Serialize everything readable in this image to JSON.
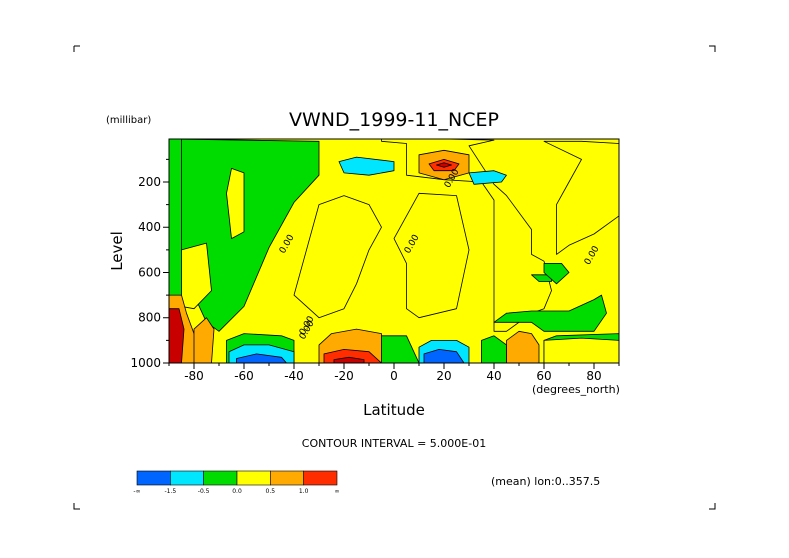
{
  "colors": {
    "lvl_m2": "#0064ff",
    "lvl_m15": "#00e6ff",
    "lvl_m05": "#00dc00",
    "lvl_0": "#ffff00",
    "lvl_05": "#ffaa00",
    "lvl_1": "#ff2d00",
    "lvl_15": "#c80000",
    "line": "#000000"
  },
  "chart_data": {
    "type": "heatmap",
    "title": "VWND_1999-11_NCEP",
    "xlabel": "Latitude",
    "ylabel": "Level",
    "y_unit": "(millibar)",
    "x_unit": "(degrees_north)",
    "xlim": [
      -90,
      90
    ],
    "ylim": [
      1000,
      10
    ],
    "x_ticks": [
      -80,
      -60,
      -40,
      -20,
      0,
      20,
      40,
      60,
      80
    ],
    "y_ticks": [
      200,
      400,
      600,
      800,
      1000
    ],
    "contour_interval_text": "CONTOUR INTERVAL = 5.000E-01",
    "region_text": "(mean) lon:0..357.5",
    "contour_labels": [
      "0.00",
      "0.00",
      "0.00",
      "0.00",
      "0.00",
      "0.00"
    ],
    "colorbar": {
      "labels": [
        "-∞",
        "-1.5",
        "-0.5",
        "0.0",
        "0.5",
        "1.0",
        "∞"
      ],
      "bins": [
        "lvl_m2",
        "lvl_m15",
        "lvl_m05",
        "lvl_0",
        "lvl_05",
        "lvl_1"
      ]
    },
    "regions": [
      {
        "level": "lvl_m05",
        "polygon": [
          [
            -90,
            10
          ],
          [
            -30,
            20
          ],
          [
            -30,
            170
          ],
          [
            -40,
            290
          ],
          [
            -50,
            490
          ],
          [
            -60,
            750
          ],
          [
            -70,
            860
          ],
          [
            -75,
            820
          ],
          [
            -80,
            700
          ],
          [
            -90,
            600
          ]
        ]
      },
      {
        "level": "lvl_0",
        "polygon": [
          [
            -90,
            740
          ],
          [
            -85,
            500
          ],
          [
            -75,
            470
          ],
          [
            -73,
            680
          ],
          [
            -80,
            760
          ]
        ]
      },
      {
        "level": "lvl_0",
        "polygon": [
          [
            -65,
            140
          ],
          [
            -60,
            160
          ],
          [
            -60,
            420
          ],
          [
            -65,
            450
          ],
          [
            -67,
            250
          ]
        ]
      },
      {
        "level": "lvl_0",
        "polygon": [
          [
            -30,
            10
          ],
          [
            -5,
            10
          ],
          [
            -5,
            20
          ],
          [
            5,
            30
          ],
          [
            5,
            170
          ],
          [
            20,
            190
          ],
          [
            35,
            200
          ],
          [
            40,
            280
          ],
          [
            40,
            760
          ],
          [
            40,
            860
          ],
          [
            45,
            860
          ],
          [
            55,
            780
          ],
          [
            60,
            760
          ],
          [
            63,
            680
          ],
          [
            60,
            550
          ],
          [
            55,
            520
          ],
          [
            55,
            410
          ],
          [
            45,
            260
          ],
          [
            40,
            210
          ],
          [
            30,
            40
          ],
          [
            40,
            15
          ],
          [
            20,
            10
          ]
        ]
      },
      {
        "level": "lvl_0",
        "polygon": [
          [
            10,
            250
          ],
          [
            25,
            260
          ],
          [
            30,
            500
          ],
          [
            25,
            760
          ],
          [
            10,
            800
          ],
          [
            5,
            760
          ],
          [
            5,
            560
          ],
          [
            0,
            450
          ],
          [
            5,
            350
          ]
        ]
      },
      {
        "level": "lvl_0",
        "polygon": [
          [
            -30,
            800
          ],
          [
            -20,
            760
          ],
          [
            -15,
            650
          ],
          [
            -10,
            500
          ],
          [
            -5,
            400
          ],
          [
            -10,
            300
          ],
          [
            -20,
            260
          ],
          [
            -30,
            300
          ],
          [
            -35,
            500
          ],
          [
            -40,
            700
          ]
        ]
      },
      {
        "level": "lvl_0",
        "polygon": [
          [
            60,
            20
          ],
          [
            75,
            20
          ],
          [
            90,
            30
          ],
          [
            90,
            350
          ],
          [
            80,
            430
          ],
          [
            70,
            480
          ],
          [
            65,
            520
          ],
          [
            65,
            300
          ],
          [
            70,
            200
          ],
          [
            75,
            100
          ]
        ]
      },
      {
        "level": "lvl_m05",
        "polygon": [
          [
            40,
            820
          ],
          [
            45,
            780
          ],
          [
            55,
            770
          ],
          [
            70,
            770
          ],
          [
            80,
            720
          ],
          [
            83,
            700
          ],
          [
            85,
            780
          ],
          [
            80,
            860
          ],
          [
            65,
            860
          ],
          [
            60,
            860
          ],
          [
            55,
            820
          ]
        ]
      },
      {
        "level": "lvl_m05",
        "polygon": [
          [
            55,
            610
          ],
          [
            63,
            610
          ],
          [
            63,
            640
          ],
          [
            58,
            640
          ]
        ]
      },
      {
        "level": "lvl_m05",
        "polygon": [
          [
            60,
            560
          ],
          [
            67,
            560
          ],
          [
            70,
            600
          ],
          [
            65,
            650
          ],
          [
            60,
            600
          ]
        ]
      },
      {
        "level": "lvl_m05",
        "polygon": [
          [
            -90,
            10
          ],
          [
            -85,
            10
          ],
          [
            -85,
            900
          ],
          [
            -90,
            1000
          ]
        ]
      },
      {
        "level": "lvl_m05",
        "polygon": [
          [
            -67,
            900
          ],
          [
            -60,
            870
          ],
          [
            -45,
            880
          ],
          [
            -40,
            900
          ],
          [
            -40,
            1000
          ],
          [
            -67,
            1000
          ]
        ]
      },
      {
        "level": "lvl_m05",
        "polygon": [
          [
            -8,
            880
          ],
          [
            5,
            880
          ],
          [
            10,
            1000
          ],
          [
            -8,
            1000
          ]
        ]
      },
      {
        "level": "lvl_m05",
        "polygon": [
          [
            35,
            900
          ],
          [
            40,
            880
          ],
          [
            45,
            920
          ],
          [
            45,
            1000
          ],
          [
            35,
            1000
          ]
        ]
      },
      {
        "level": "lvl_m05",
        "polygon": [
          [
            60,
            900
          ],
          [
            65,
            880
          ],
          [
            90,
            870
          ],
          [
            90,
            1000
          ],
          [
            60,
            1000
          ]
        ]
      },
      {
        "level": "lvl_0",
        "polygon": [
          [
            60,
            900
          ],
          [
            75,
            890
          ],
          [
            90,
            900
          ],
          [
            90,
            1000
          ],
          [
            60,
            1000
          ]
        ]
      },
      {
        "level": "lvl_m15",
        "polygon": [
          [
            -22,
            110
          ],
          [
            -15,
            90
          ],
          [
            0,
            110
          ],
          [
            0,
            150
          ],
          [
            -10,
            170
          ],
          [
            -20,
            160
          ]
        ]
      },
      {
        "level": "lvl_m15",
        "polygon": [
          [
            30,
            160
          ],
          [
            40,
            150
          ],
          [
            45,
            170
          ],
          [
            43,
            200
          ],
          [
            32,
            210
          ]
        ]
      },
      {
        "level": "lvl_05",
        "polygon": [
          [
            10,
            80
          ],
          [
            20,
            60
          ],
          [
            30,
            80
          ],
          [
            30,
            160
          ],
          [
            20,
            190
          ],
          [
            10,
            160
          ]
        ]
      },
      {
        "level": "lvl_1",
        "polygon": [
          [
            14,
            120
          ],
          [
            20,
            100
          ],
          [
            26,
            120
          ],
          [
            24,
            150
          ],
          [
            16,
            150
          ]
        ]
      },
      {
        "level": "lvl_15",
        "polygon": [
          [
            17,
            125
          ],
          [
            20,
            115
          ],
          [
            23,
            125
          ],
          [
            20,
            135
          ]
        ]
      },
      {
        "level": "lvl_05",
        "polygon": [
          [
            -90,
            700
          ],
          [
            -85,
            700
          ],
          [
            -83,
            780
          ],
          [
            -80,
            870
          ],
          [
            -78,
            940
          ],
          [
            -80,
            1000
          ],
          [
            -90,
            1000
          ]
        ]
      },
      {
        "level": "lvl_05",
        "polygon": [
          [
            -80,
            850
          ],
          [
            -75,
            800
          ],
          [
            -72,
            850
          ],
          [
            -73,
            1000
          ],
          [
            -80,
            1000
          ]
        ]
      },
      {
        "level": "lvl_05",
        "polygon": [
          [
            -30,
            920
          ],
          [
            -25,
            870
          ],
          [
            -15,
            850
          ],
          [
            -5,
            870
          ],
          [
            -5,
            1000
          ],
          [
            -30,
            1000
          ]
        ]
      },
      {
        "level": "lvl_05",
        "polygon": [
          [
            45,
            900
          ],
          [
            50,
            860
          ],
          [
            55,
            870
          ],
          [
            58,
            920
          ],
          [
            58,
            1000
          ],
          [
            45,
            1000
          ]
        ]
      },
      {
        "level": "lvl_15",
        "polygon": [
          [
            -90,
            760
          ],
          [
            -86,
            760
          ],
          [
            -84,
            850
          ],
          [
            -85,
            1000
          ],
          [
            -90,
            1000
          ]
        ]
      },
      {
        "level": "lvl_1",
        "polygon": [
          [
            -28,
            960
          ],
          [
            -20,
            940
          ],
          [
            -10,
            950
          ],
          [
            -5,
            1000
          ],
          [
            -28,
            1000
          ]
        ]
      },
      {
        "level": "lvl_15",
        "polygon": [
          [
            -24,
            985
          ],
          [
            -18,
            975
          ],
          [
            -12,
            985
          ],
          [
            -12,
            1000
          ],
          [
            -24,
            1000
          ]
        ]
      },
      {
        "level": "lvl_m15",
        "polygon": [
          [
            -66,
            950
          ],
          [
            -60,
            920
          ],
          [
            -50,
            920
          ],
          [
            -40,
            950
          ],
          [
            -40,
            1000
          ],
          [
            -66,
            1000
          ]
        ]
      },
      {
        "level": "lvl_m2",
        "polygon": [
          [
            -63,
            980
          ],
          [
            -55,
            960
          ],
          [
            -45,
            975
          ],
          [
            -43,
            1000
          ],
          [
            -63,
            1000
          ]
        ]
      },
      {
        "level": "lvl_m15",
        "polygon": [
          [
            10,
            930
          ],
          [
            15,
            900
          ],
          [
            25,
            900
          ],
          [
            30,
            930
          ],
          [
            30,
            1000
          ],
          [
            10,
            1000
          ]
        ]
      },
      {
        "level": "lvl_m2",
        "polygon": [
          [
            12,
            960
          ],
          [
            18,
            940
          ],
          [
            25,
            950
          ],
          [
            28,
            1000
          ],
          [
            12,
            1000
          ]
        ]
      }
    ],
    "label_positions": [
      [
        -42,
        480
      ],
      [
        -34,
        840
      ],
      [
        8,
        480
      ],
      [
        24,
        190
      ],
      [
        80,
        530
      ],
      [
        -34,
        860
      ]
    ]
  }
}
